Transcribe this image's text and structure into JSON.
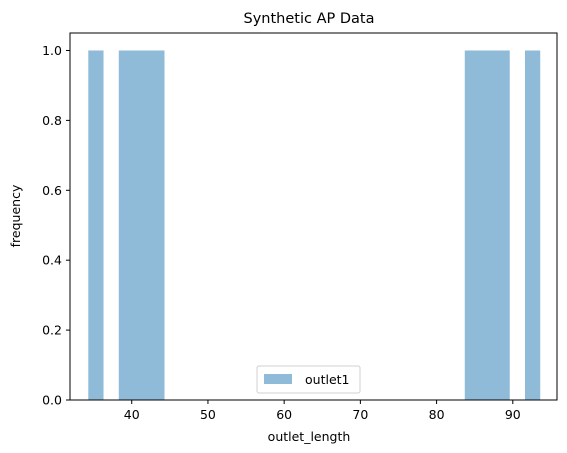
{
  "chart_data": {
    "type": "bar",
    "title": "Synthetic AP Data",
    "xlabel": "outlet_length",
    "ylabel": "frequency",
    "xlim": [
      31.9,
      95.8
    ],
    "ylim": [
      0,
      1.05
    ],
    "x_ticks": [
      40,
      50,
      60,
      70,
      80,
      90
    ],
    "y_ticks": [
      0.0,
      0.2,
      0.4,
      0.6,
      0.8,
      1.0
    ],
    "legend_loc": "lower center",
    "color": "#8fbbd9",
    "series": [
      {
        "name": "outlet1",
        "bins": [
          {
            "x0": 34.3,
            "x1": 36.3,
            "value": 1
          },
          {
            "x0": 38.3,
            "x1": 44.3,
            "value": 1
          },
          {
            "x0": 83.7,
            "x1": 89.6,
            "value": 1
          },
          {
            "x0": 91.6,
            "x1": 93.6,
            "value": 1
          }
        ]
      }
    ]
  }
}
